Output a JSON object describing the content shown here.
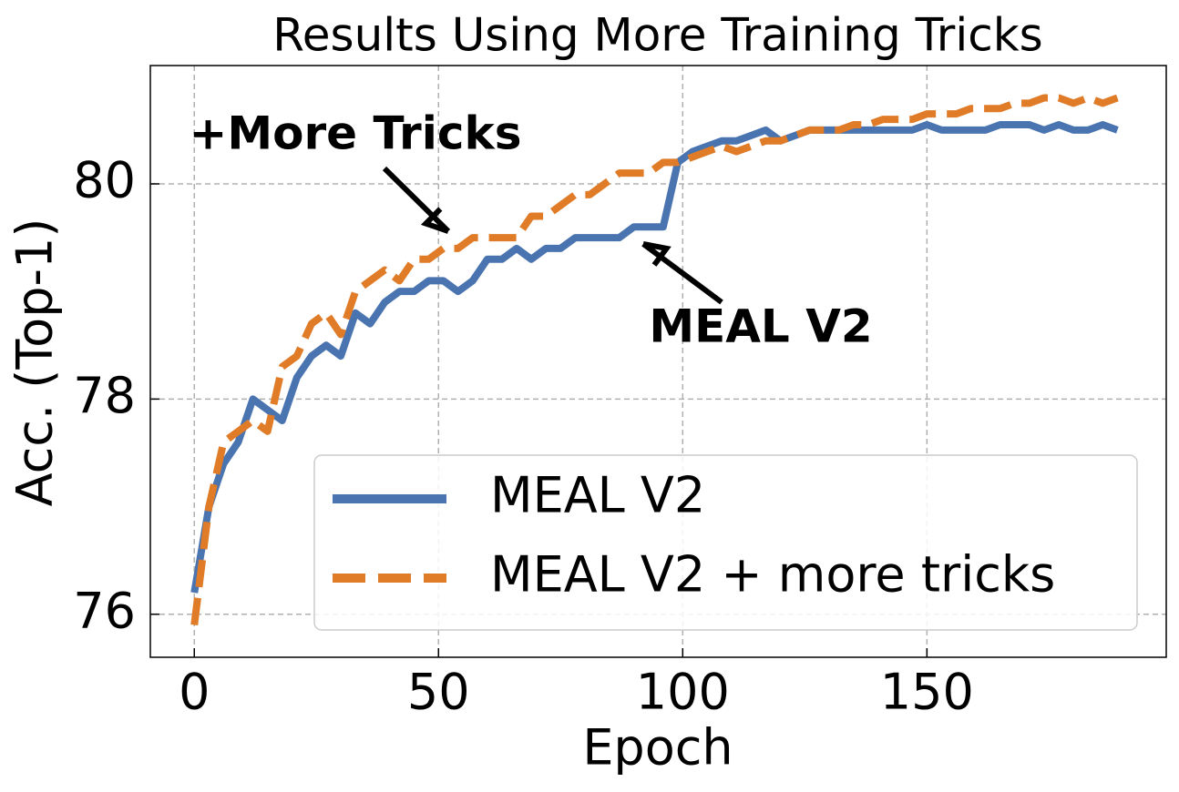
{
  "chart_data": {
    "type": "line",
    "title": "Results Using More Training Tricks",
    "xlabel": "Epoch",
    "ylabel": "Acc. (Top-1)",
    "x": [
      0,
      3,
      6,
      9,
      12,
      15,
      18,
      21,
      24,
      27,
      30,
      33,
      36,
      39,
      42,
      45,
      48,
      51,
      54,
      57,
      60,
      63,
      66,
      69,
      72,
      75,
      78,
      81,
      84,
      87,
      90,
      93,
      96,
      99,
      102,
      105,
      108,
      111,
      114,
      117,
      120,
      123,
      126,
      129,
      132,
      135,
      138,
      141,
      144,
      147,
      150,
      153,
      156,
      159,
      162,
      165,
      168,
      171,
      174,
      177,
      180,
      183,
      186,
      189
    ],
    "series": [
      {
        "name": "MEAL V2",
        "color": "#4a74b0",
        "dashed": false,
        "values": [
          76.2,
          77.0,
          77.4,
          77.6,
          78.0,
          77.9,
          77.8,
          78.2,
          78.4,
          78.5,
          78.4,
          78.8,
          78.7,
          78.9,
          79.0,
          79.0,
          79.1,
          79.1,
          79.0,
          79.1,
          79.3,
          79.3,
          79.4,
          79.3,
          79.4,
          79.4,
          79.5,
          79.5,
          79.5,
          79.5,
          79.6,
          79.6,
          79.6,
          80.2,
          80.3,
          80.35,
          80.4,
          80.4,
          80.45,
          80.5,
          80.4,
          80.45,
          80.5,
          80.5,
          80.5,
          80.5,
          80.5,
          80.5,
          80.5,
          80.5,
          80.55,
          80.5,
          80.5,
          80.5,
          80.5,
          80.55,
          80.55,
          80.55,
          80.5,
          80.55,
          80.5,
          80.5,
          80.55,
          80.5
        ]
      },
      {
        "name": "MEAL V2 + more tricks",
        "color": "#e07b28",
        "dashed": true,
        "values": [
          75.9,
          77.0,
          77.6,
          77.7,
          77.8,
          77.7,
          78.3,
          78.4,
          78.7,
          78.8,
          78.6,
          79.0,
          79.1,
          79.2,
          79.1,
          79.3,
          79.3,
          79.4,
          79.4,
          79.5,
          79.5,
          79.5,
          79.5,
          79.7,
          79.7,
          79.8,
          79.9,
          79.9,
          80.0,
          80.1,
          80.1,
          80.1,
          80.2,
          80.2,
          80.25,
          80.3,
          80.35,
          80.3,
          80.35,
          80.4,
          80.4,
          80.45,
          80.5,
          80.5,
          80.5,
          80.55,
          80.55,
          80.6,
          80.6,
          80.6,
          80.65,
          80.65,
          80.65,
          80.7,
          80.7,
          80.7,
          80.75,
          80.75,
          80.8,
          80.8,
          80.75,
          80.8,
          80.75,
          80.8
        ]
      }
    ],
    "annotations": [
      "+More Tricks",
      "MEAL V2"
    ],
    "xlim": [
      -9,
      199
    ],
    "ylim": [
      75.6,
      81.1
    ],
    "xticks": [
      0,
      50,
      100,
      150
    ],
    "yticks": [
      76,
      78,
      80
    ],
    "grid": true,
    "legend": "lower right"
  }
}
